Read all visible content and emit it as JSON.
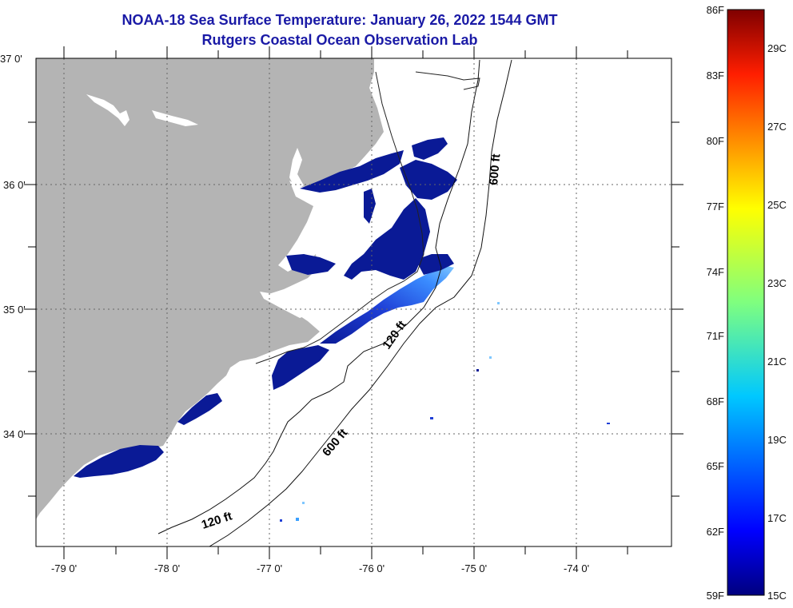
{
  "header": {
    "title": "NOAA-18 Sea Surface Temperature:  January 26, 2022 1544 GMT",
    "subtitle": "Rutgers Coastal Ocean Observation Lab"
  },
  "axes": {
    "lat_labels": [
      "37 0'",
      "36 0'",
      "35 0'",
      "34 0'"
    ],
    "lon_labels": [
      "-79 0'",
      "-78 0'",
      "-77 0'",
      "-76 0'",
      "-75 0'",
      "-74 0'"
    ]
  },
  "contours": {
    "label_120_inner": "120 ft",
    "label_120_outer": "120 ft",
    "label_600_north": "600 ft",
    "label_600_south": "600 ft"
  },
  "colorbar": {
    "f_labels": [
      "86F",
      "83F",
      "80F",
      "77F",
      "74F",
      "71F",
      "68F",
      "65F",
      "62F",
      "59F"
    ],
    "c_labels": [
      "29C",
      "27C",
      "25C",
      "23C",
      "21C",
      "19C",
      "17C",
      "15C"
    ]
  },
  "colors": {
    "land": "#b4b4b4",
    "cold_water": "#0a1a96",
    "title": "#1a1aa6"
  }
}
